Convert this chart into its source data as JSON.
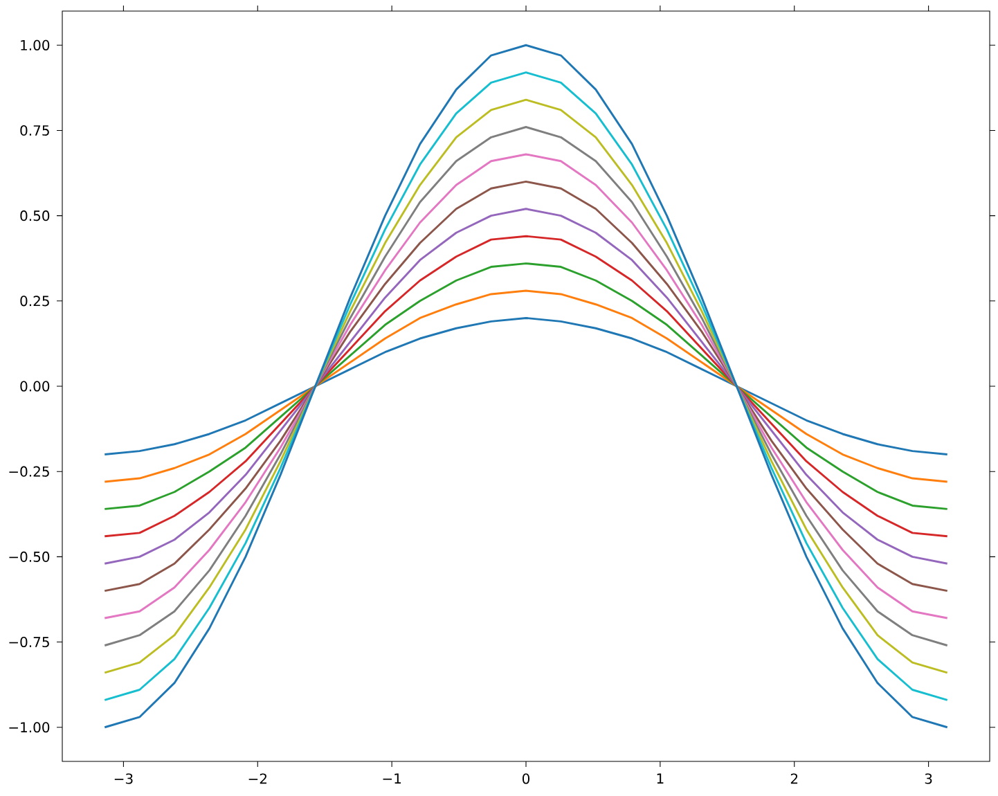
{
  "chart_data": {
    "type": "line",
    "x": [
      -3.14,
      -2.88,
      -2.62,
      -2.36,
      -2.09,
      -1.83,
      -1.57,
      -1.31,
      -1.05,
      -0.79,
      -0.52,
      -0.26,
      0,
      0.26,
      0.52,
      0.79,
      1.05,
      1.31,
      1.57,
      1.83,
      2.09,
      2.36,
      2.62,
      2.88,
      3.14
    ],
    "series": [
      {
        "color": "#1f77b4",
        "values": [
          -0.2,
          -0.19,
          -0.17,
          -0.14,
          -0.1,
          -0.05,
          0,
          0.05,
          0.1,
          0.14,
          0.17,
          0.19,
          0.2,
          0.19,
          0.17,
          0.14,
          0.1,
          0.05,
          0,
          -0.05,
          -0.1,
          -0.14,
          -0.17,
          -0.19,
          -0.2
        ]
      },
      {
        "color": "#ff7f0e",
        "values": [
          -0.28,
          -0.27,
          -0.24,
          -0.2,
          -0.14,
          -0.07,
          0,
          0.07,
          0.14,
          0.2,
          0.24,
          0.27,
          0.28,
          0.27,
          0.24,
          0.2,
          0.14,
          0.07,
          0,
          -0.07,
          -0.14,
          -0.2,
          -0.24,
          -0.27,
          -0.28
        ]
      },
      {
        "color": "#2ca02c",
        "values": [
          -0.36,
          -0.35,
          -0.31,
          -0.25,
          -0.18,
          -0.09,
          0,
          0.09,
          0.18,
          0.25,
          0.31,
          0.35,
          0.36,
          0.35,
          0.31,
          0.25,
          0.18,
          0.09,
          0,
          -0.09,
          -0.18,
          -0.25,
          -0.31,
          -0.35,
          -0.36
        ]
      },
      {
        "color": "#d62728",
        "values": [
          -0.44,
          -0.43,
          -0.38,
          -0.31,
          -0.22,
          -0.11,
          0,
          0.11,
          0.22,
          0.31,
          0.38,
          0.43,
          0.44,
          0.43,
          0.38,
          0.31,
          0.22,
          0.11,
          0,
          -0.11,
          -0.22,
          -0.31,
          -0.38,
          -0.43,
          -0.44
        ]
      },
      {
        "color": "#9467bd",
        "values": [
          -0.52,
          -0.5,
          -0.45,
          -0.37,
          -0.26,
          -0.13,
          0,
          0.13,
          0.26,
          0.37,
          0.45,
          0.5,
          0.52,
          0.5,
          0.45,
          0.37,
          0.26,
          0.13,
          0,
          -0.13,
          -0.26,
          -0.37,
          -0.45,
          -0.5,
          -0.52
        ]
      },
      {
        "color": "#8c564b",
        "values": [
          -0.6,
          -0.58,
          -0.52,
          -0.42,
          -0.3,
          -0.16,
          0,
          0.16,
          0.3,
          0.42,
          0.52,
          0.58,
          0.6,
          0.58,
          0.52,
          0.42,
          0.3,
          0.16,
          0,
          -0.16,
          -0.3,
          -0.42,
          -0.52,
          -0.58,
          -0.6
        ]
      },
      {
        "color": "#e377c2",
        "values": [
          -0.68,
          -0.66,
          -0.59,
          -0.48,
          -0.34,
          -0.18,
          0,
          0.18,
          0.34,
          0.48,
          0.59,
          0.66,
          0.68,
          0.66,
          0.59,
          0.48,
          0.34,
          0.18,
          0,
          -0.18,
          -0.34,
          -0.48,
          -0.59,
          -0.66,
          -0.68
        ]
      },
      {
        "color": "#7f7f7f",
        "values": [
          -0.76,
          -0.73,
          -0.66,
          -0.54,
          -0.38,
          -0.2,
          0,
          0.2,
          0.38,
          0.54,
          0.66,
          0.73,
          0.76,
          0.73,
          0.66,
          0.54,
          0.38,
          0.2,
          0,
          -0.2,
          -0.38,
          -0.54,
          -0.66,
          -0.73,
          -0.76
        ]
      },
      {
        "color": "#bcbd22",
        "values": [
          -0.84,
          -0.81,
          -0.73,
          -0.59,
          -0.42,
          -0.22,
          0,
          0.22,
          0.42,
          0.59,
          0.73,
          0.81,
          0.84,
          0.81,
          0.73,
          0.59,
          0.42,
          0.22,
          0,
          -0.22,
          -0.42,
          -0.59,
          -0.73,
          -0.81,
          -0.84
        ]
      },
      {
        "color": "#17becf",
        "values": [
          -0.92,
          -0.89,
          -0.8,
          -0.65,
          -0.46,
          -0.24,
          0,
          0.24,
          0.46,
          0.65,
          0.8,
          0.89,
          0.92,
          0.89,
          0.8,
          0.65,
          0.46,
          0.24,
          0,
          -0.24,
          -0.46,
          -0.65,
          -0.8,
          -0.89,
          -0.92
        ]
      },
      {
        "color": "#1f77b4",
        "values": [
          -1,
          -0.97,
          -0.87,
          -0.71,
          -0.5,
          -0.26,
          0,
          0.26,
          0.5,
          0.71,
          0.87,
          0.97,
          1,
          0.97,
          0.87,
          0.71,
          0.5,
          0.26,
          0,
          -0.26,
          -0.5,
          -0.71,
          -0.87,
          -0.97,
          -1
        ]
      }
    ],
    "xlim": [
      -3.456,
      3.456
    ],
    "ylim": [
      -1.1,
      1.1
    ],
    "xticks": [
      {
        "value": -3,
        "label": "−3"
      },
      {
        "value": -2,
        "label": "−2"
      },
      {
        "value": -1,
        "label": "−1"
      },
      0,
      1,
      2,
      3
    ],
    "yticks": [
      {
        "value": -1,
        "label": "−1.00"
      },
      {
        "value": -0.75,
        "label": "−0.75"
      },
      {
        "value": -0.5,
        "label": "−0.50"
      },
      {
        "value": -0.25,
        "label": "−0.25"
      },
      {
        "value": 0,
        "label": "0.00"
      },
      {
        "value": 0.25,
        "label": "0.25"
      },
      {
        "value": 0.5,
        "label": "0.50"
      },
      {
        "value": 0.75,
        "label": "0.75"
      },
      {
        "value": 1,
        "label": "1.00"
      }
    ]
  }
}
